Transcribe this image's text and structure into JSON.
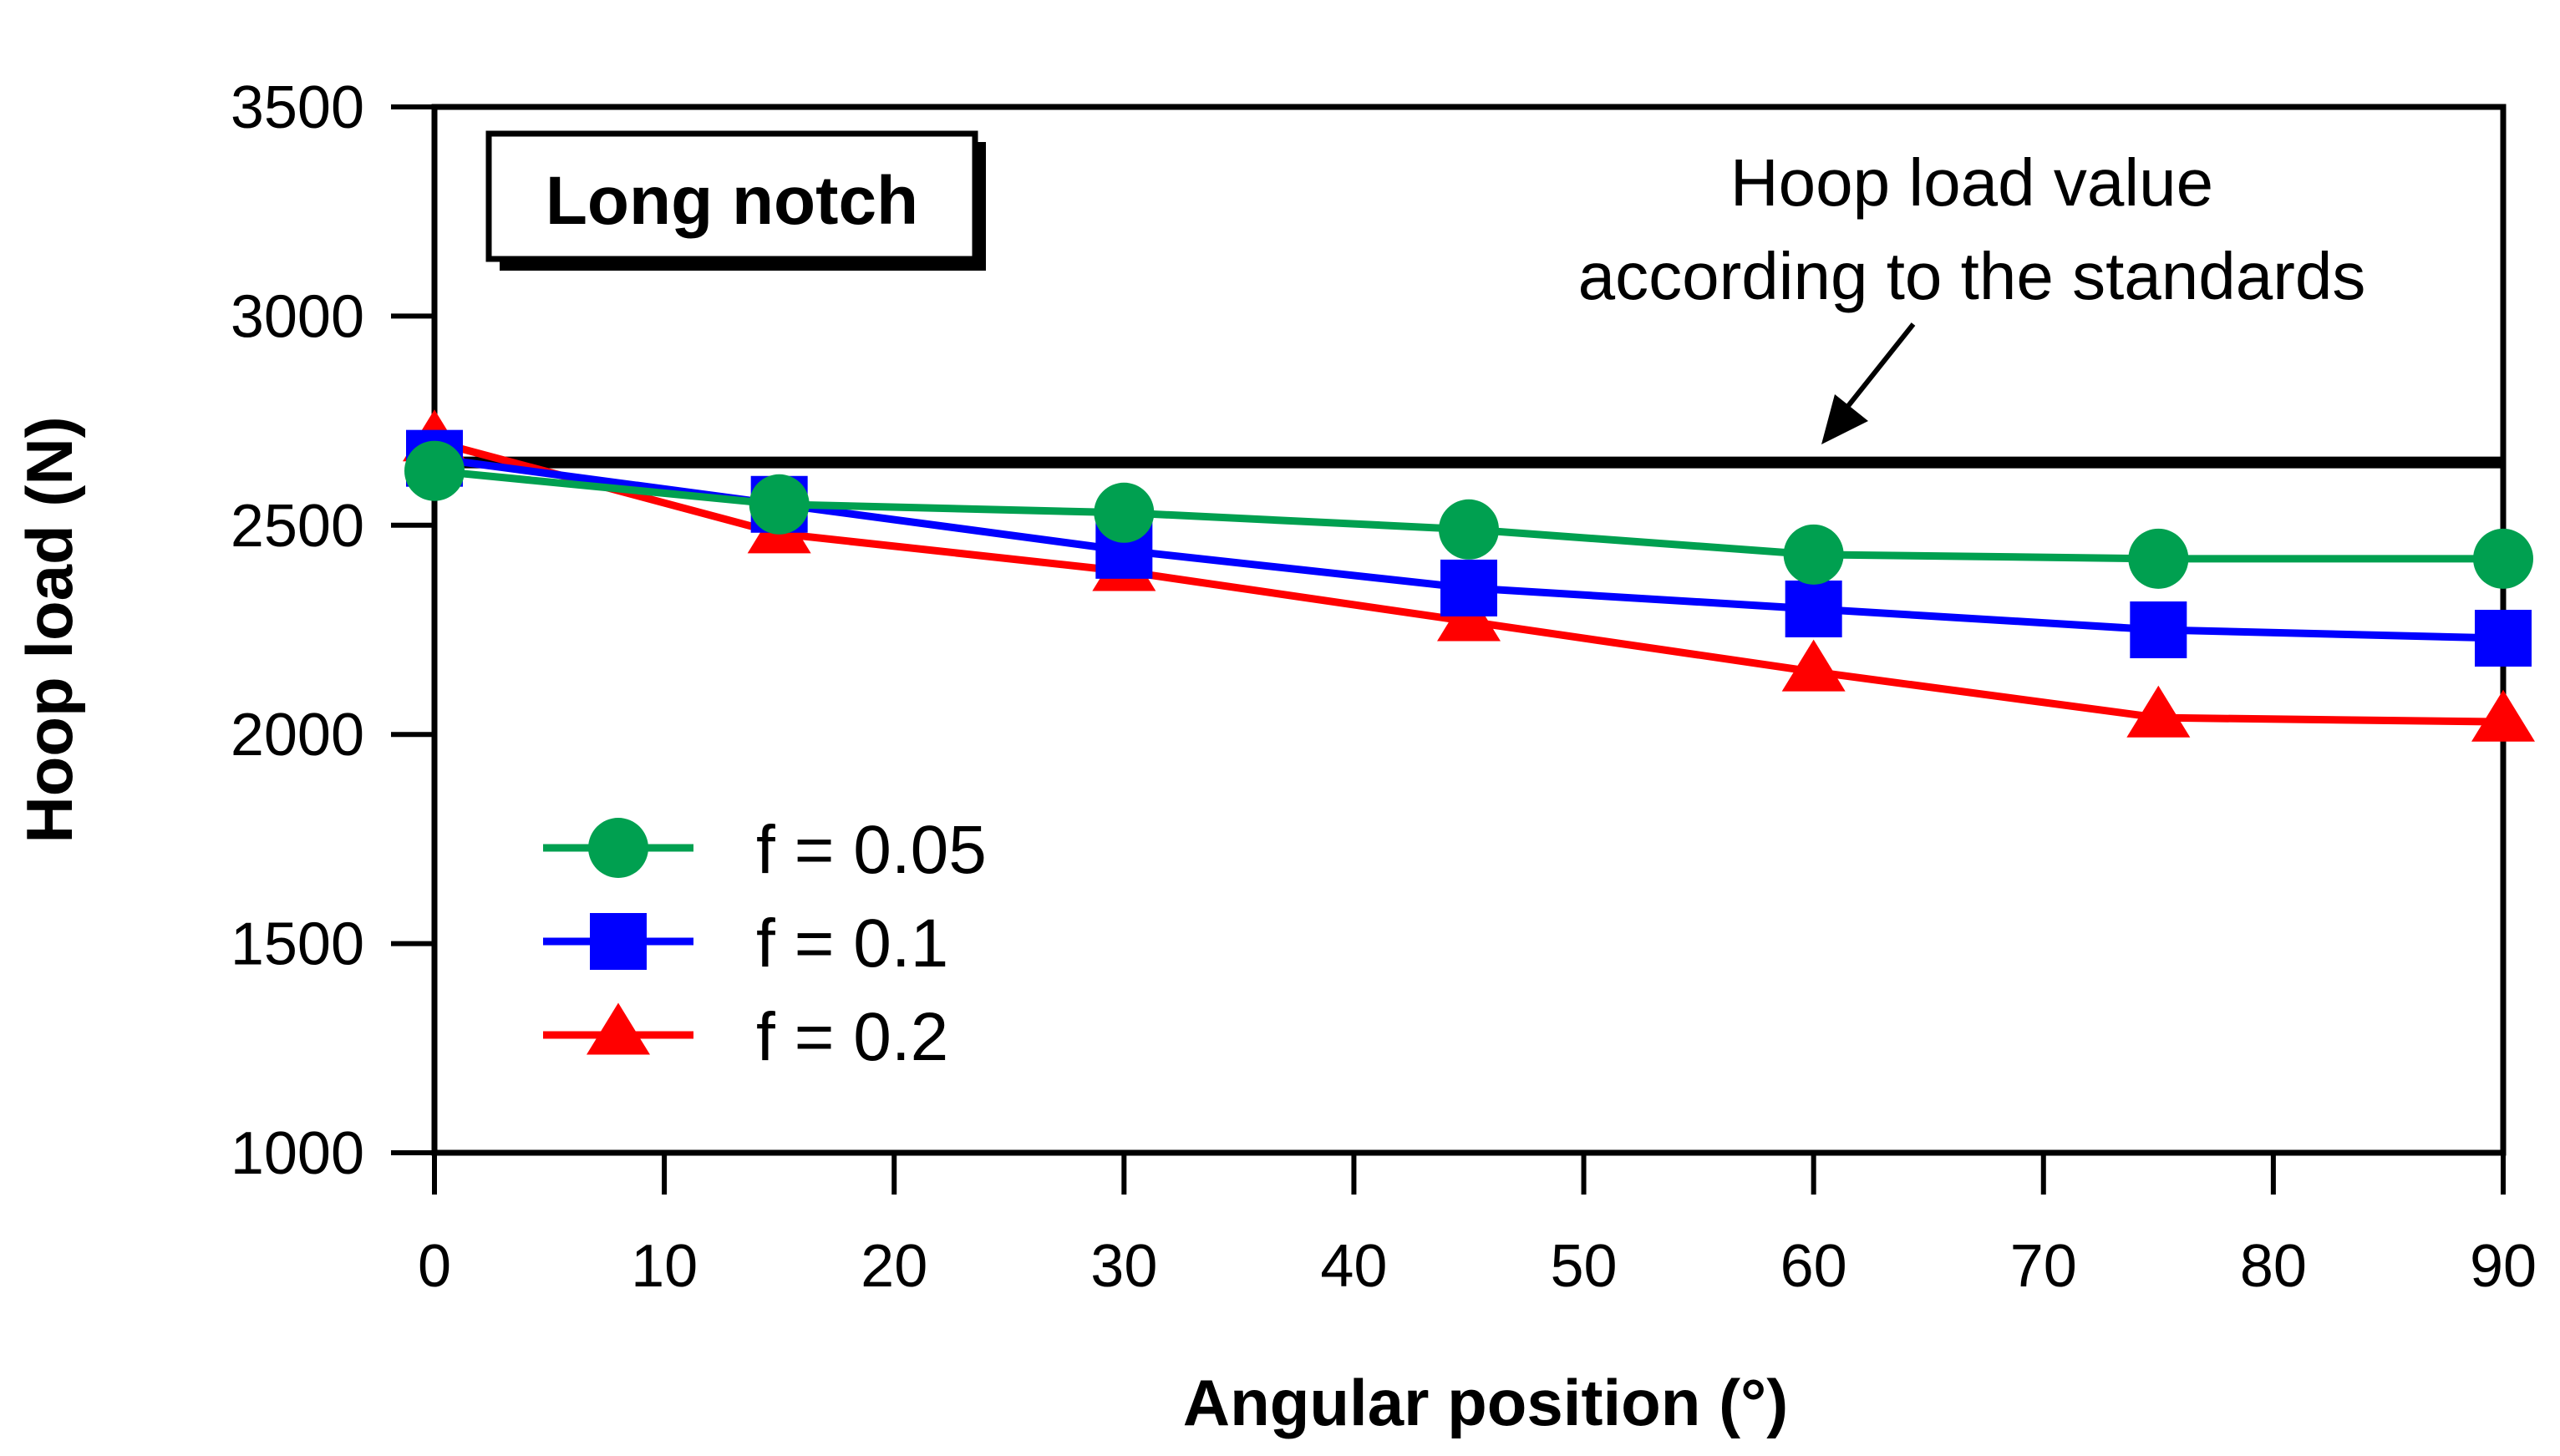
{
  "chart_data": {
    "type": "line",
    "title": "",
    "xlabel": "Angular position (°)",
    "ylabel": "Hoop load (N)",
    "xlim": [
      0,
      90
    ],
    "ylim": [
      1000,
      3500
    ],
    "x_ticks": [
      0,
      10,
      20,
      30,
      40,
      50,
      60,
      70,
      80,
      90
    ],
    "y_ticks": [
      1000,
      1500,
      2000,
      2500,
      3000,
      3500
    ],
    "x": [
      0,
      15,
      30,
      45,
      60,
      75,
      90
    ],
    "series": [
      {
        "name": "f = 0.2",
        "color": "#ff0000",
        "marker": "triangle",
        "values": [
          2700,
          2480,
          2390,
          2270,
          2150,
          2040,
          2030
        ]
      },
      {
        "name": "f = 0.1",
        "color": "#0000ff",
        "marker": "square",
        "values": [
          2660,
          2550,
          2440,
          2350,
          2300,
          2250,
          2230
        ]
      },
      {
        "name": "f = 0.05",
        "color": "#00a050",
        "marker": "circle",
        "values": [
          2630,
          2550,
          2530,
          2490,
          2430,
          2420,
          2420
        ]
      }
    ],
    "legend_order": [
      "f = 0.05",
      "f = 0.1",
      "f = 0.2"
    ],
    "legend_position": "bottom-left",
    "reference_line": {
      "value": 2650,
      "label_line1": "Hoop load value",
      "label_line2": "according to the standards"
    },
    "boxed_label": "Long notch",
    "grid": false
  }
}
